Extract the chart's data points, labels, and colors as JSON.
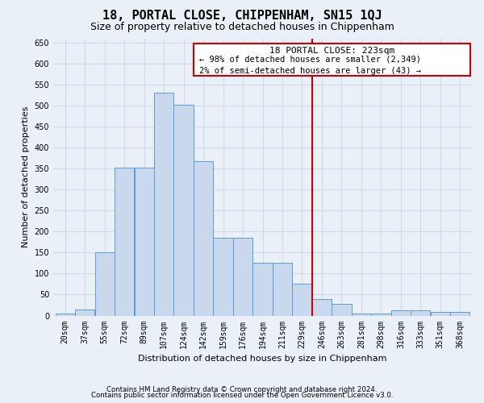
{
  "title": "18, PORTAL CLOSE, CHIPPENHAM, SN15 1QJ",
  "subtitle": "Size of property relative to detached houses in Chippenham",
  "xlabel": "Distribution of detached houses by size in Chippenham",
  "ylabel": "Number of detached properties",
  "footnote1": "Contains HM Land Registry data © Crown copyright and database right 2024.",
  "footnote2": "Contains public sector information licensed under the Open Government Licence v3.0.",
  "bin_labels": [
    "20sqm",
    "37sqm",
    "55sqm",
    "72sqm",
    "89sqm",
    "107sqm",
    "124sqm",
    "142sqm",
    "159sqm",
    "176sqm",
    "194sqm",
    "211sqm",
    "229sqm",
    "246sqm",
    "263sqm",
    "281sqm",
    "298sqm",
    "316sqm",
    "333sqm",
    "351sqm",
    "368sqm"
  ],
  "bar_values": [
    5,
    15,
    150,
    353,
    353,
    530,
    502,
    368,
    185,
    185,
    125,
    125,
    75,
    40,
    28,
    5,
    5,
    13,
    13,
    8,
    8
  ],
  "bar_color": "#c8d9ed",
  "bar_edge_color": "#5b9bd5",
  "property_line_x": 12.5,
  "annotation_title": "18 PORTAL CLOSE: 223sqm",
  "annotation_line1": "← 98% of detached houses are smaller (2,349)",
  "annotation_line2": "2% of semi-detached houses are larger (43) →",
  "annotation_color": "#cc0000",
  "ylim": [
    0,
    660
  ],
  "yticks": [
    0,
    50,
    100,
    150,
    200,
    250,
    300,
    350,
    400,
    450,
    500,
    550,
    600,
    650
  ],
  "background_color": "#eaf0f8",
  "grid_color": "#d0dae8",
  "title_fontsize": 11,
  "subtitle_fontsize": 9,
  "axis_label_fontsize": 8,
  "tick_fontsize": 7,
  "ann_fontsize": 8,
  "ann_small_fontsize": 7.5
}
